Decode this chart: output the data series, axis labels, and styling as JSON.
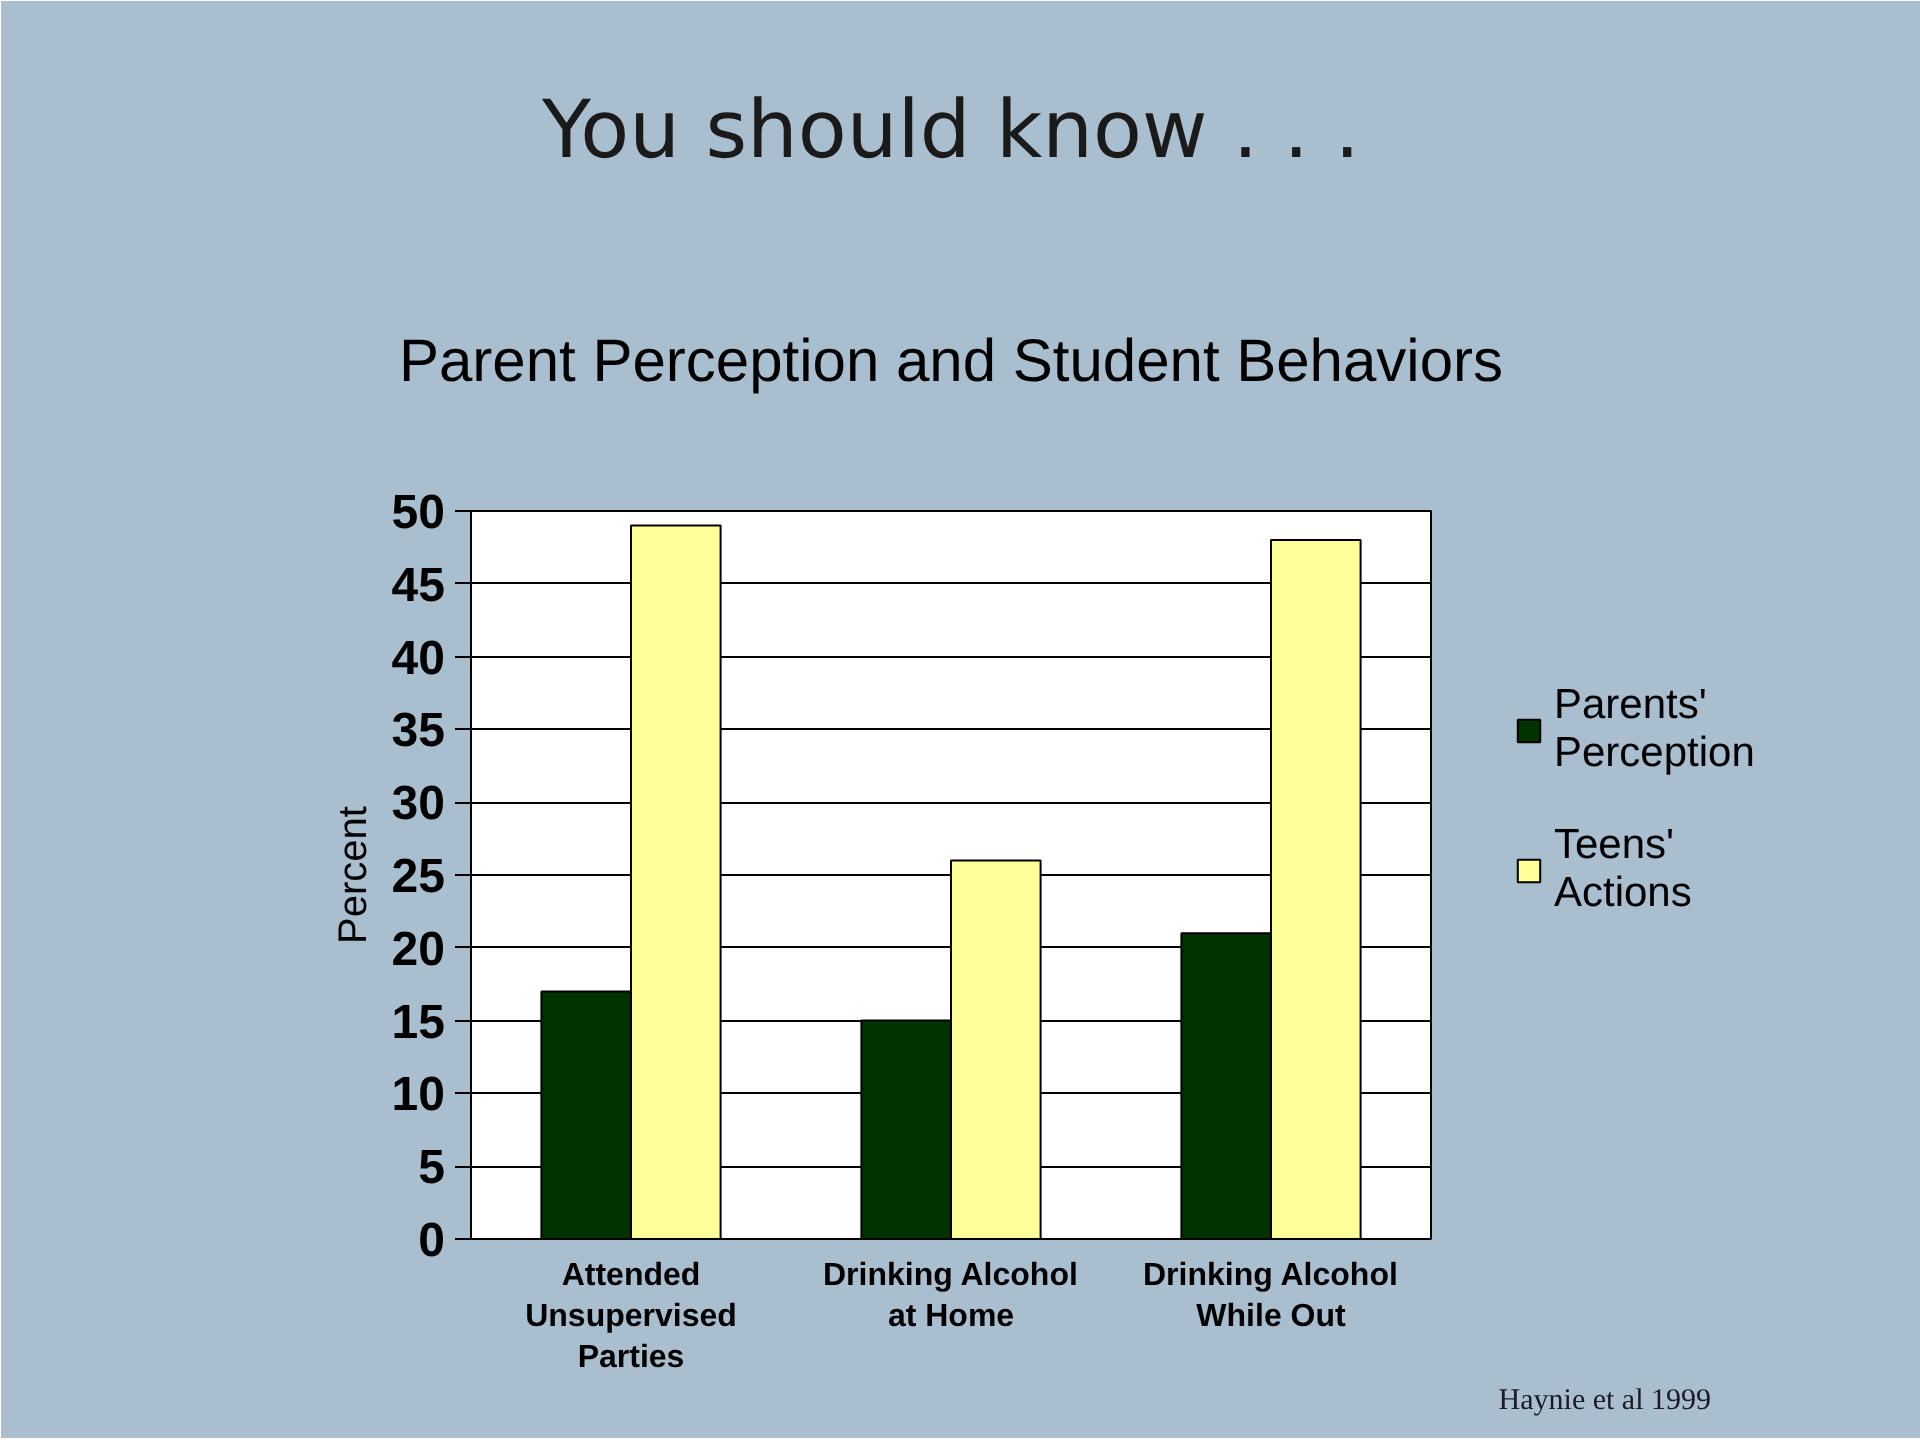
{
  "chart_data": {
    "type": "bar",
    "title": "You should know . . .",
    "subtitle": "Parent Perception and Student Behaviors",
    "ylabel": "Percent",
    "categories": [
      "Attended Unsupervised Parties",
      "Drinking Alcohol at Home",
      "Drinking Alcohol While Out"
    ],
    "series": [
      {
        "name": "Parents' Perception",
        "color": "#003300",
        "values": [
          17,
          15,
          21
        ]
      },
      {
        "name": "Teens' Actions",
        "color": "#ffff99",
        "values": [
          49,
          26,
          48
        ]
      }
    ],
    "ylim": [
      0,
      50
    ],
    "yticks": [
      0,
      5,
      10,
      15,
      20,
      25,
      30,
      35,
      40,
      45,
      50
    ],
    "grid": "y",
    "legend": "right",
    "annotations": [
      "Haynie et al 1999"
    ]
  }
}
